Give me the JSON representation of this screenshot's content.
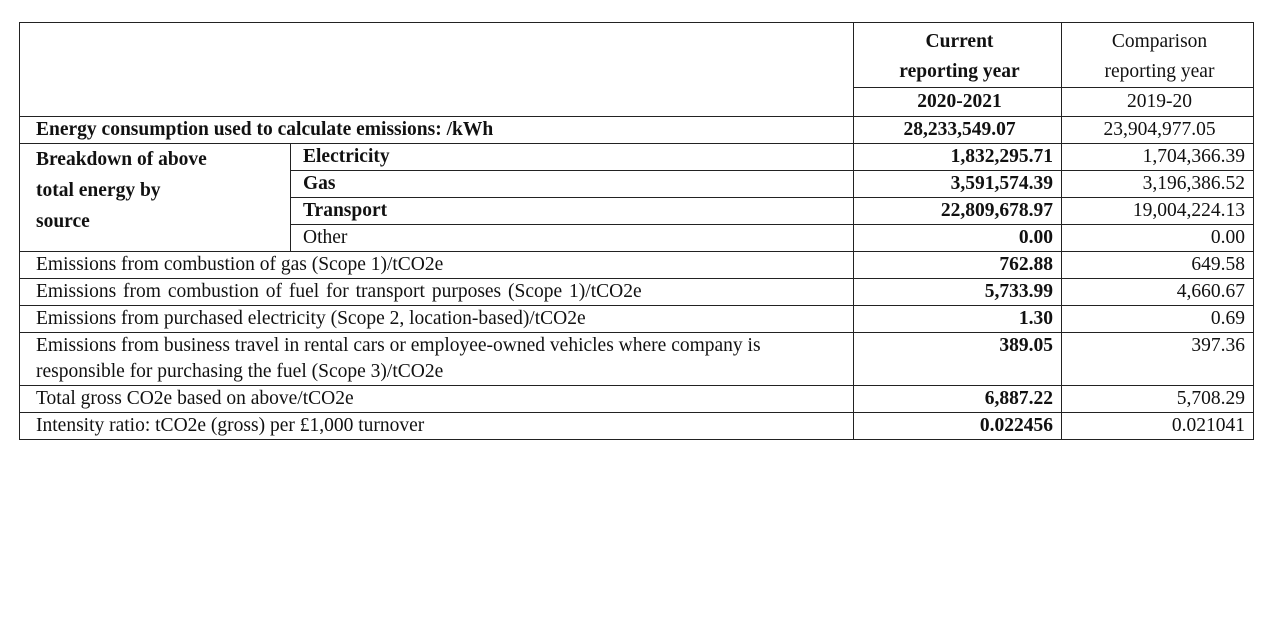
{
  "table": {
    "header": {
      "current_line1": "Current",
      "current_line2": "reporting year",
      "current_period": "2020-2021",
      "comparison_line1": "Comparison",
      "comparison_line2": "reporting year",
      "comparison_period": "2019-20"
    },
    "energy_total": {
      "label": "Energy consumption used to calculate emissions: /kWh",
      "current": "28,233,549.07",
      "comparison": "23,904,977.05"
    },
    "breakdown": {
      "label": "Breakdown of above total energy by source",
      "label_line1": "Breakdown of above",
      "label_line2": "total energy by",
      "label_line3": "source",
      "rows": [
        {
          "label": "Electricity",
          "current": "1,832,295.71",
          "comparison": "1,704,366.39"
        },
        {
          "label": "Gas",
          "current": "3,591,574.39",
          "comparison": "3,196,386.52"
        },
        {
          "label": "Transport",
          "current": "22,809,678.97",
          "comparison": "19,004,224.13"
        },
        {
          "label": "Other",
          "current": "0.00",
          "comparison": "0.00"
        }
      ]
    },
    "emission_rows": [
      {
        "label": "Emissions from combustion of gas (Scope 1)/tCO2e",
        "current": "762.88",
        "comparison": "649.58"
      },
      {
        "label": "Emissions from combustion of fuel for transport purposes (Scope 1)/tCO2e",
        "current": "5,733.99",
        "comparison": "4,660.67"
      },
      {
        "label": "Emissions from purchased electricity (Scope 2, location-based)/tCO2e",
        "current": "1.30",
        "comparison": "0.69"
      },
      {
        "label": "Emissions from business travel in rental cars or employee-owned vehicles where company is responsible for purchasing the fuel (Scope 3)/tCO2e",
        "current": "389.05",
        "comparison": "397.36"
      },
      {
        "label": "Total gross CO2e based on above/tCO2e",
        "current": "6,887.22",
        "comparison": "5,708.29"
      },
      {
        "label": "Intensity ratio: tCO2e (gross) per £1,000 turnover",
        "current": "0.022456",
        "comparison": "0.021041"
      }
    ]
  }
}
